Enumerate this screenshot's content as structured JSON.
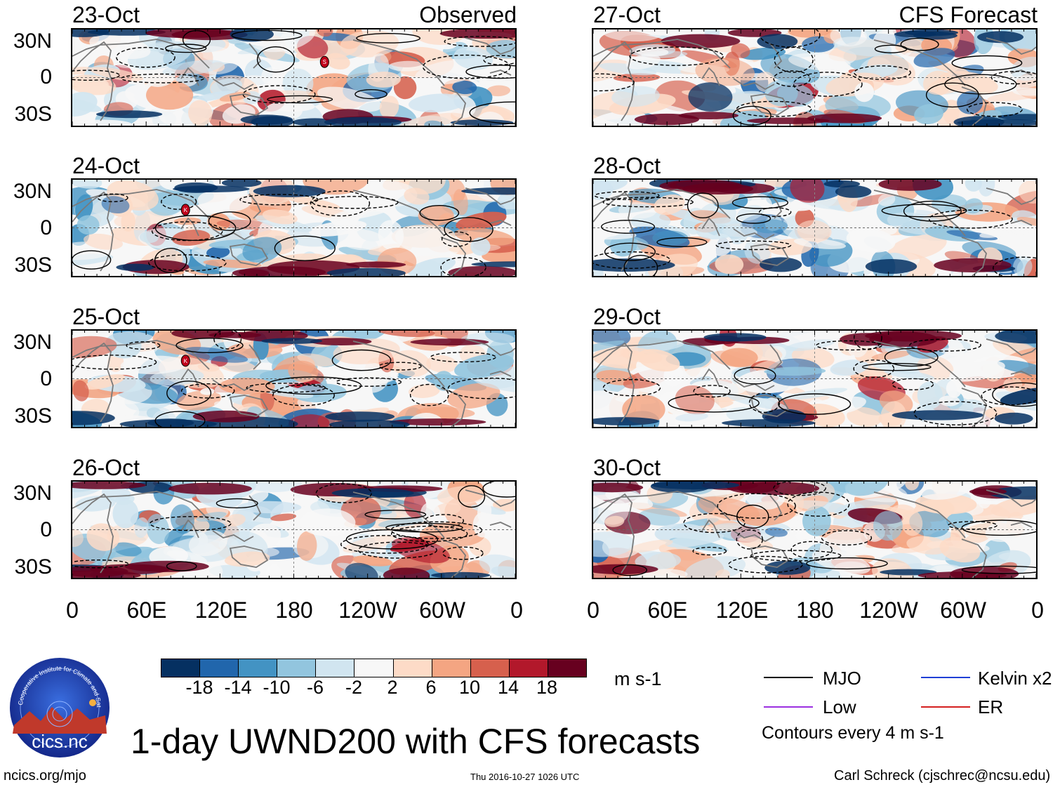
{
  "chart_data": {
    "type": "heatmap",
    "title": "1-day UWND200 with CFS forecasts",
    "variable": "UWND200",
    "units": "m s-1",
    "observed_label": "Observed",
    "forecast_label": "CFS Forecast",
    "panels_observed": [
      {
        "date": "23-Oct",
        "markers": [
          {
            "label": "S",
            "lon": 205,
            "lat": 13
          }
        ]
      },
      {
        "date": "24-Oct",
        "markers": [
          {
            "label": "K",
            "lon": 92,
            "lat": 15
          }
        ]
      },
      {
        "date": "25-Oct",
        "markers": [
          {
            "label": "K",
            "lon": 92,
            "lat": 15
          }
        ]
      },
      {
        "date": "26-Oct",
        "markers": []
      }
    ],
    "panels_forecast": [
      {
        "date": "27-Oct"
      },
      {
        "date": "28-Oct"
      },
      {
        "date": "29-Oct"
      },
      {
        "date": "30-Oct"
      }
    ],
    "x_ticks": [
      "0",
      "60E",
      "120E",
      "180",
      "120W",
      "60W",
      "0"
    ],
    "y_ticks": [
      "30N",
      "0",
      "30S"
    ],
    "x_range_deg": [
      0,
      360
    ],
    "y_range_deg": [
      -40,
      40
    ],
    "colorbar": {
      "levels": [
        "-18",
        "-14",
        "-10",
        "-6",
        "-2",
        "2",
        "6",
        "10",
        "14",
        "18"
      ],
      "colors": [
        "#053061",
        "#2166ac",
        "#4393c3",
        "#92c5de",
        "#d1e5f0",
        "#f7f7f7",
        "#fddbc7",
        "#f4a582",
        "#d6604d",
        "#b2182b",
        "#67001f"
      ],
      "units": "m s-1"
    },
    "contour_legend": [
      {
        "name": "MJO",
        "color": "#000000"
      },
      {
        "name": "Kelvin x2",
        "color": "#1f3fd6"
      },
      {
        "name": "Low",
        "color": "#9b30e0"
      },
      {
        "name": "ER",
        "color": "#d42020"
      }
    ],
    "contour_note": "Contours every 4 m s-1"
  },
  "footer": {
    "url": "ncics.org/mjo",
    "timestamp": "Thu 2016-10-27 1026 UTC",
    "author": "Carl Schreck (cjschrec@ncsu.edu)"
  },
  "logo": {
    "ring_text": "Cooperative Institute for Climate and Satellites",
    "name": "cics.nc"
  }
}
